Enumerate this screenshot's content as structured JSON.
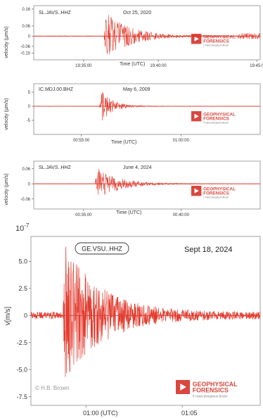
{
  "colors": {
    "trace": "#e23b2e",
    "frame": "#8a8a8a",
    "zeroline": "#c0302a",
    "text": "#333333",
    "logo_red": "#d9473f"
  },
  "logo": {
    "line1": "GEOPHYSICAL",
    "line2": "FORENSICS",
    "sub": "© Hans Bengtsson Brown"
  },
  "chart_data": [
    {
      "type": "line",
      "station": "SL.JAVS..HHZ",
      "date": "Oct 25, 2020",
      "ylabel": "velocity (µm/s)",
      "xlabel": "Time (UTC)",
      "ylim": [
        -0.14,
        0.18
      ],
      "yticks": [
        "0.16",
        "0.06",
        "0",
        "-0.06",
        "-0.10"
      ],
      "ytick_values": [
        0.16,
        0.06,
        0,
        -0.06,
        -0.1
      ],
      "xticks": [
        {
          "label": "19:35:00",
          "t": 0.22
        },
        {
          "label": "19:40:00",
          "t": 0.55
        },
        {
          "label": "19:45:0",
          "t": 0.985
        }
      ],
      "event_t": 0.31,
      "peak_amplitude": 0.15,
      "coda_decay": 0.11,
      "tail": [
        0.9,
        1.0,
        0.004
      ]
    },
    {
      "type": "line",
      "station": "IC.MDJ.00.BHZ",
      "date": "May 6, 2009",
      "ylabel": "velocity (µm/s)",
      "xlabel": "Time (UTC)",
      "ylim": [
        -10,
        8
      ],
      "yticks": [
        "5",
        "0",
        "-5"
      ],
      "ytick_values": [
        5,
        0,
        -5
      ],
      "xticks": [
        {
          "label": "00:55:00",
          "t": 0.21
        },
        {
          "label": "01:00:00",
          "t": 0.65
        }
      ],
      "event_t": 0.29,
      "peak_amplitude": 7,
      "coda_decay": 0.05
    },
    {
      "type": "line",
      "station": "SL.JAVS..HHZ",
      "date": "June 4, 2024",
      "ylabel": "velocity (µm/s)",
      "xlabel": "Time (UTC)",
      "ylim": [
        -0.1,
        0.09
      ],
      "yticks": [
        "0.06",
        "0",
        "-0.06"
      ],
      "ytick_values": [
        0.06,
        0,
        -0.06
      ],
      "xticks": [
        {
          "label": "00:35:00",
          "t": 0.22
        },
        {
          "label": "00:40:00",
          "t": 0.65
        }
      ],
      "event_t": 0.27,
      "peak_amplitude": 0.07,
      "coda_decay": 0.1
    },
    {
      "type": "line",
      "station": "GE.VSU..HHZ",
      "date": "Sept 18, 2024",
      "ylabel": "v[m/s]",
      "exponent": "10",
      "exponent_power": "-7",
      "xlabel_left": "01:00 (UTC)",
      "xlabel_right": "01:05",
      "copyright": "© H.B. Brown",
      "ylim": [
        -8.3,
        7.3
      ],
      "yticks": [
        "5.0",
        "2.5",
        "0",
        "-2.5",
        "-5.0",
        "-7.5"
      ],
      "ytick_values": [
        5.0,
        2.5,
        0,
        -2.5,
        -5.0,
        -7.5
      ],
      "xticks": [
        {
          "label": "",
          "t": 0.24
        },
        {
          "label": "",
          "t": 0.66
        }
      ],
      "event_t": 0.14,
      "peak_amplitude": 6.5,
      "coda_decay": 0.16
    }
  ]
}
